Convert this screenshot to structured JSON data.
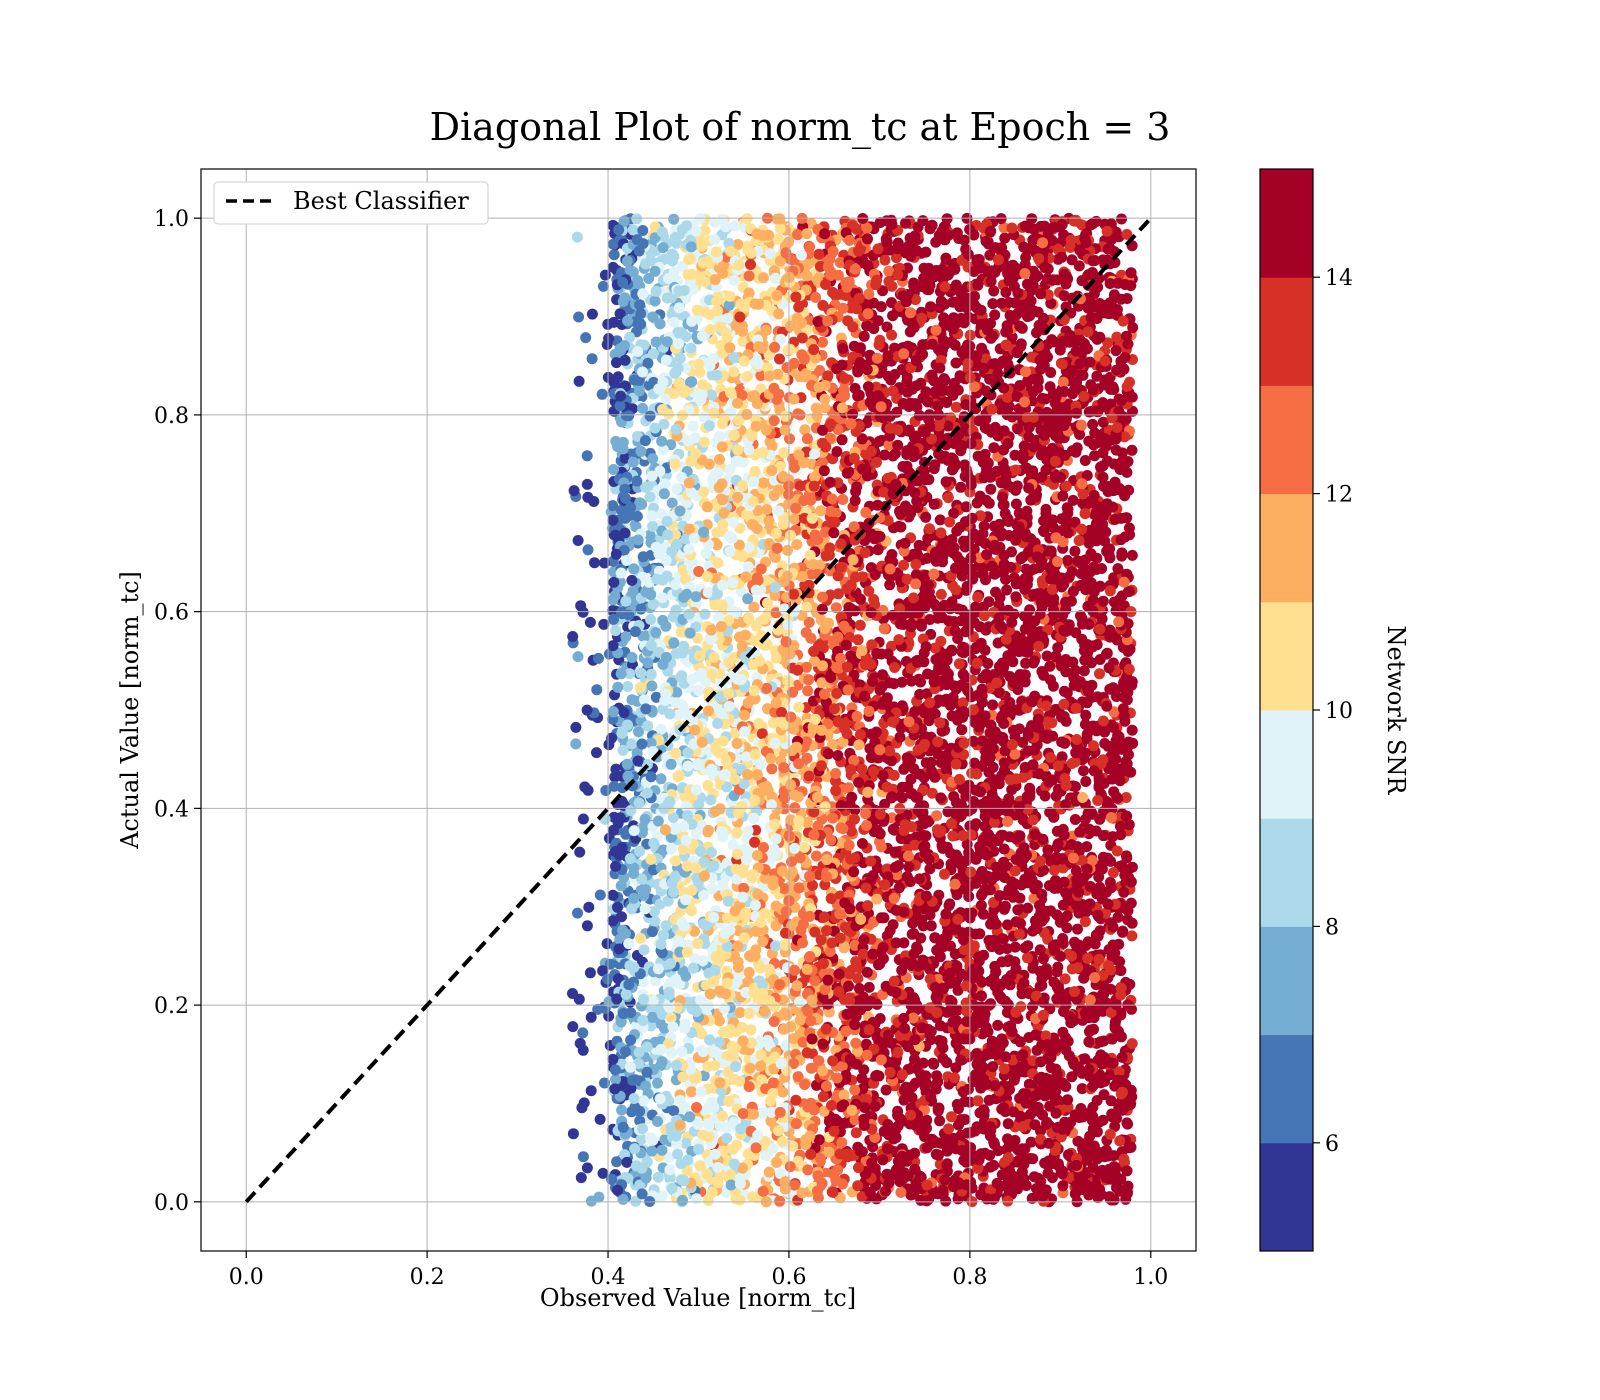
{
  "chart_data": {
    "type": "scatter",
    "title": "Diagonal Plot of norm_tc at Epoch = 3",
    "xlabel": "Observed Value [norm_tc]",
    "ylabel": "Actual Value [norm_tc]",
    "xlim": [
      -0.05,
      1.05
    ],
    "ylim": [
      -0.05,
      1.05
    ],
    "xticks": [
      "0.0",
      "0.2",
      "0.4",
      "0.6",
      "0.8",
      "1.0"
    ],
    "yticks": [
      "0.0",
      "0.2",
      "0.4",
      "0.6",
      "0.8",
      "1.0"
    ],
    "grid": true,
    "legend": {
      "position": "top-left",
      "entries": [
        "Best Classifier"
      ]
    },
    "reference_line": {
      "name": "Best Classifier",
      "style": "dashed",
      "color": "#000000",
      "x": [
        0.0,
        1.0
      ],
      "y": [
        0.0,
        1.0
      ]
    },
    "point_cloud": {
      "x_min": 0.37,
      "x_max": 0.99,
      "y_min": 0.0,
      "y_max": 1.0,
      "color_value_vs_x": [
        {
          "x": 0.4,
          "snr": 6.0
        },
        {
          "x": 0.43,
          "snr": 7.5
        },
        {
          "x": 0.47,
          "snr": 9.0
        },
        {
          "x": 0.52,
          "snr": 10.0
        },
        {
          "x": 0.58,
          "snr": 11.0
        },
        {
          "x": 0.63,
          "snr": 12.5
        },
        {
          "x": 0.68,
          "snr": 14.0
        },
        {
          "x": 0.75,
          "snr": 15.0
        }
      ]
    },
    "colorbar": {
      "label": "Network SNR",
      "range": [
        5,
        15
      ],
      "tick_values": [
        6,
        8,
        10,
        12,
        14
      ],
      "tick_labels": [
        "6",
        "8",
        "10",
        "12",
        "14"
      ],
      "bins": [
        {
          "from": 5,
          "to": 6,
          "color": "#313695"
        },
        {
          "from": 6,
          "to": 7,
          "color": "#4575b4"
        },
        {
          "from": 7,
          "to": 8,
          "color": "#74add1"
        },
        {
          "from": 8,
          "to": 9,
          "color": "#abd9e9"
        },
        {
          "from": 9,
          "to": 10,
          "color": "#e0f3f8"
        },
        {
          "from": 10,
          "to": 11,
          "color": "#fee090"
        },
        {
          "from": 11,
          "to": 12,
          "color": "#fdae61"
        },
        {
          "from": 12,
          "to": 13,
          "color": "#f46d43"
        },
        {
          "from": 13,
          "to": 14,
          "color": "#d73027"
        },
        {
          "from": 14,
          "to": 15,
          "color": "#a50026"
        }
      ]
    }
  }
}
